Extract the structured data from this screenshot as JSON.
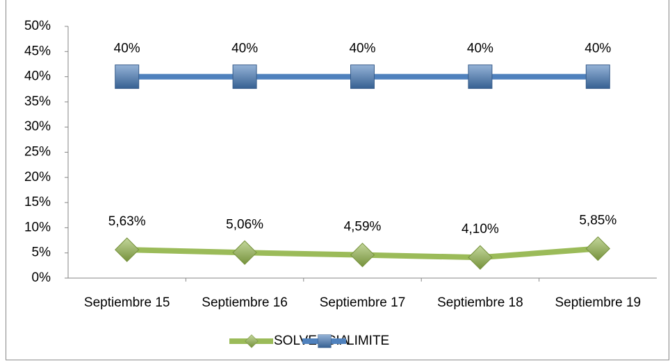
{
  "chart_data": {
    "type": "line",
    "categories": [
      "Septiembre 15",
      "Septiembre 16",
      "Septiembre 17",
      "Septiembre 18",
      "Septiembre 19"
    ],
    "series": [
      {
        "name": "SOLVENCIA",
        "color": "#9bbb59",
        "marker": "diamond",
        "values": [
          5.63,
          5.06,
          4.59,
          4.1,
          5.85
        ],
        "value_labels": [
          "5,63%",
          "5,06%",
          "4,59%",
          "4,10%",
          "5,85%"
        ]
      },
      {
        "name": "LIMITE",
        "color": "#4f81bd",
        "marker": "square",
        "values": [
          40,
          40,
          40,
          40,
          40
        ],
        "value_labels": [
          "40%",
          "40%",
          "40%",
          "40%",
          "40%"
        ]
      }
    ],
    "ylim": [
      0,
      50
    ],
    "yticks": [
      {
        "value": 0,
        "label": "0%"
      },
      {
        "value": 5,
        "label": "5%"
      },
      {
        "value": 10,
        "label": "10%"
      },
      {
        "value": 15,
        "label": "15%"
      },
      {
        "value": 20,
        "label": "20%"
      },
      {
        "value": 25,
        "label": "25%"
      },
      {
        "value": 30,
        "label": "30%"
      },
      {
        "value": 35,
        "label": "35%"
      },
      {
        "value": 40,
        "label": "40%"
      },
      {
        "value": 45,
        "label": "45%"
      },
      {
        "value": 50,
        "label": "50%"
      }
    ],
    "grid": false,
    "legend": "bottom"
  }
}
